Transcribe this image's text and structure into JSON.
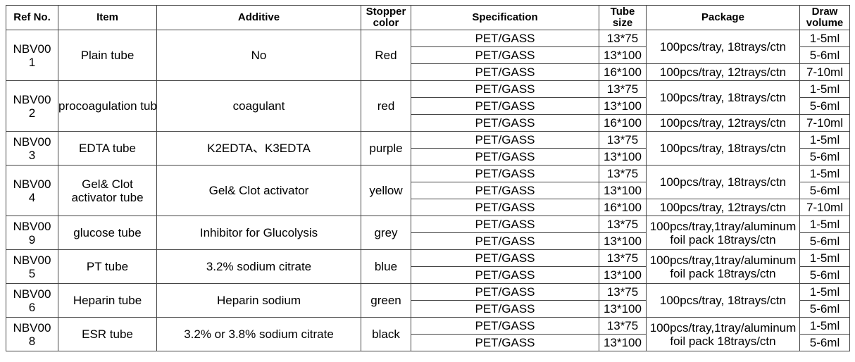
{
  "headers": [
    "Ref No.",
    "Item",
    "Additive",
    "Stopper color",
    "Specification",
    "Tube size",
    "Package",
    "Draw volume"
  ],
  "groups": [
    {
      "ref": "NBV001",
      "item": "Plain tube",
      "additive": "No",
      "stopper": "Red",
      "rows": [
        {
          "spec": "PET/GASS",
          "size": "13*75",
          "volume": "1-5ml"
        },
        {
          "spec": "PET/GASS",
          "size": "13*100",
          "volume": "5-6ml"
        },
        {
          "spec": "PET/GASS",
          "size": "16*100",
          "volume": "7-10ml"
        }
      ],
      "packages": [
        {
          "text": "100pcs/tray, 18trays/ctn",
          "span": 2
        },
        {
          "text": "100pcs/tray, 12trays/ctn",
          "span": 1
        }
      ]
    },
    {
      "ref": "NBV002",
      "item": "procoagulation tube",
      "additive": "coagulant",
      "stopper": "red",
      "rows": [
        {
          "spec": "PET/GASS",
          "size": "13*75",
          "volume": "1-5ml"
        },
        {
          "spec": "PET/GASS",
          "size": "13*100",
          "volume": "5-6ml"
        },
        {
          "spec": "PET/GASS",
          "size": "16*100",
          "volume": "7-10ml"
        }
      ],
      "packages": [
        {
          "text": "100pcs/tray, 18trays/ctn",
          "span": 2
        },
        {
          "text": "100pcs/tray, 12trays/ctn",
          "span": 1
        }
      ]
    },
    {
      "ref": "NBV003",
      "item": "EDTA tube",
      "additive": "K2EDTA、K3EDTA",
      "stopper": "purple",
      "rows": [
        {
          "spec": "PET/GASS",
          "size": "13*75",
          "volume": "1-5ml"
        },
        {
          "spec": "PET/GASS",
          "size": "13*100",
          "volume": "5-6ml"
        }
      ],
      "packages": [
        {
          "text": "100pcs/tray, 18trays/ctn",
          "span": 2
        }
      ]
    },
    {
      "ref": "NBV004",
      "item": "Gel& Clot activator tube",
      "additive": "Gel& Clot activator",
      "stopper": "yellow",
      "rows": [
        {
          "spec": "PET/GASS",
          "size": "13*75",
          "volume": "1-5ml"
        },
        {
          "spec": "PET/GASS",
          "size": "13*100",
          "volume": "5-6ml"
        },
        {
          "spec": "PET/GASS",
          "size": "16*100",
          "volume": "7-10ml"
        }
      ],
      "packages": [
        {
          "text": "100pcs/tray, 18trays/ctn",
          "span": 2
        },
        {
          "text": "100pcs/tray, 12trays/ctn",
          "span": 1
        }
      ]
    },
    {
      "ref": "NBV009",
      "item": "glucose tube",
      "additive": "Inhibitor for Glucolysis",
      "stopper": "grey",
      "rows": [
        {
          "spec": "PET/GASS",
          "size": "13*75",
          "volume": "1-5ml"
        },
        {
          "spec": "PET/GASS",
          "size": "13*100",
          "volume": "5-6ml"
        }
      ],
      "packages": [
        {
          "text": "100pcs/tray,1tray/aluminum foil pack 18trays/ctn",
          "span": 2
        }
      ]
    },
    {
      "ref": "NBV005",
      "item": "PT tube",
      "additive": "3.2% sodium citrate",
      "stopper": "blue",
      "rows": [
        {
          "spec": "PET/GASS",
          "size": "13*75",
          "volume": "1-5ml"
        },
        {
          "spec": "PET/GASS",
          "size": "13*100",
          "volume": "5-6ml"
        }
      ],
      "packages": [
        {
          "text": "100pcs/tray,1tray/aluminum foil pack 18trays/ctn",
          "span": 2
        }
      ]
    },
    {
      "ref": "NBV006",
      "item": "Heparin tube",
      "additive": "Heparin sodium",
      "stopper": "green",
      "rows": [
        {
          "spec": "PET/GASS",
          "size": "13*75",
          "volume": "1-5ml"
        },
        {
          "spec": "PET/GASS",
          "size": "13*100",
          "volume": "5-6ml"
        }
      ],
      "packages": [
        {
          "text": "100pcs/tray, 18trays/ctn",
          "span": 2
        }
      ]
    },
    {
      "ref": "NBV008",
      "item": "ESR tube",
      "additive": "3.2% or 3.8% sodium citrate",
      "stopper": "black",
      "rows": [
        {
          "spec": "PET/GASS",
          "size": "13*75",
          "volume": "1-5ml"
        },
        {
          "spec": "PET/GASS",
          "size": "13*100",
          "volume": "5-6ml"
        }
      ],
      "packages": [
        {
          "text": "100pcs/tray,1tray/aluminum foil pack 18trays/ctn",
          "span": 2
        }
      ]
    }
  ]
}
